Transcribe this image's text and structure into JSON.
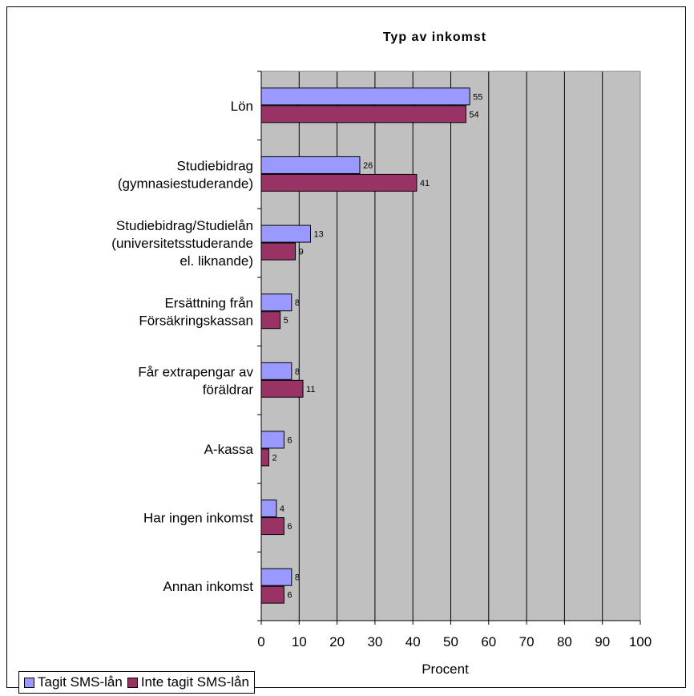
{
  "chart_data": {
    "type": "bar",
    "orientation": "horizontal",
    "title": "Typ av inkomst",
    "xlabel": "Procent",
    "ylabel": "",
    "xlim": [
      0,
      100
    ],
    "xticks": [
      "0",
      "10",
      "20",
      "30",
      "40",
      "50",
      "60",
      "70",
      "80",
      "90",
      "100"
    ],
    "grid": true,
    "legend_position": "bottom-left",
    "categories": [
      [
        "Lön"
      ],
      [
        "Studiebidrag",
        "(gymnasiestuderande)"
      ],
      [
        "Studiebidrag/Studielån",
        "(universitetsstuderande",
        "el. liknande)"
      ],
      [
        "Ersättning från",
        "Försäkringskassan"
      ],
      [
        "Får extrapengar av",
        "föräldrar"
      ],
      [
        "A-kassa"
      ],
      [
        "Har ingen inkomst"
      ],
      [
        "Annan inkomst"
      ]
    ],
    "series": [
      {
        "name": "Tagit SMS-lån",
        "color": "#9999ff",
        "values": [
          55,
          26,
          13,
          8,
          8,
          6,
          4,
          8
        ]
      },
      {
        "name": "Inte tagit SMS-lån",
        "color": "#993366",
        "values": [
          54,
          41,
          9,
          5,
          11,
          2,
          6,
          6
        ]
      }
    ],
    "plot_background": "#c0c0c0"
  }
}
